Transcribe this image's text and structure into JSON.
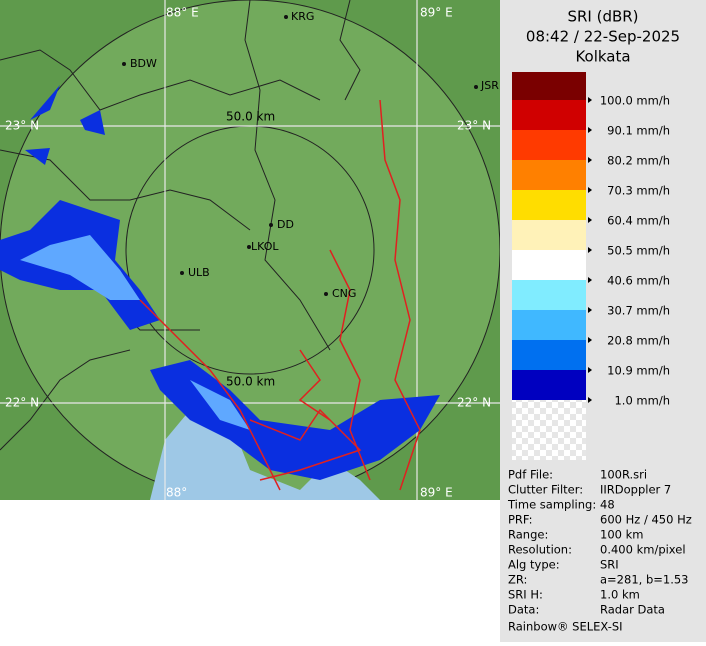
{
  "map": {
    "grid_labels": [
      "88° E",
      "89° E",
      "23° N",
      "23° N",
      "22° N",
      "22° N",
      "88°",
      "89° E"
    ],
    "range_labels": [
      "50.0 km",
      "50.0 km"
    ],
    "cities": [
      "KRG",
      "BDW",
      "JSR",
      "DD",
      "LKOL",
      "ULB",
      "CNG"
    ]
  },
  "panel": {
    "title": "SRI (dBR)",
    "datetime": "08:42 / 22-Sep-2025",
    "station": "Kolkata",
    "legend": [
      "100.0 mm/h",
      "90.1 mm/h",
      "80.2 mm/h",
      "70.3 mm/h",
      "60.4 mm/h",
      "50.5 mm/h",
      "40.6 mm/h",
      "30.7 mm/h",
      "20.8 mm/h",
      "10.9 mm/h",
      "1.0 mm/h"
    ],
    "scale_colors": [
      "#7a0000",
      "#d00000",
      "#ff3a00",
      "#ff8000",
      "#ffdd00",
      "#fff2b8",
      "#ffffff",
      "#80ecff",
      "#40b8ff",
      "#0070f0",
      "#0000c0"
    ],
    "info": [
      [
        "Pdf File:",
        "100R.sri"
      ],
      [
        "Clutter Filter:",
        "IIRDoppler 7"
      ],
      [
        "Time sampling:",
        "48"
      ],
      [
        "PRF:",
        "600 Hz / 450 Hz"
      ],
      [
        "Range:",
        "100 km"
      ],
      [
        "Resolution:",
        "0.400 km/pixel"
      ],
      [
        "Alg type:",
        "SRI"
      ],
      [
        "ZR:",
        "a=281, b=1.53"
      ],
      [
        "SRI H:",
        "1.0 km"
      ],
      [
        "Data:",
        "Radar Data"
      ]
    ],
    "footer": "Rainbow® SELEX-SI"
  }
}
